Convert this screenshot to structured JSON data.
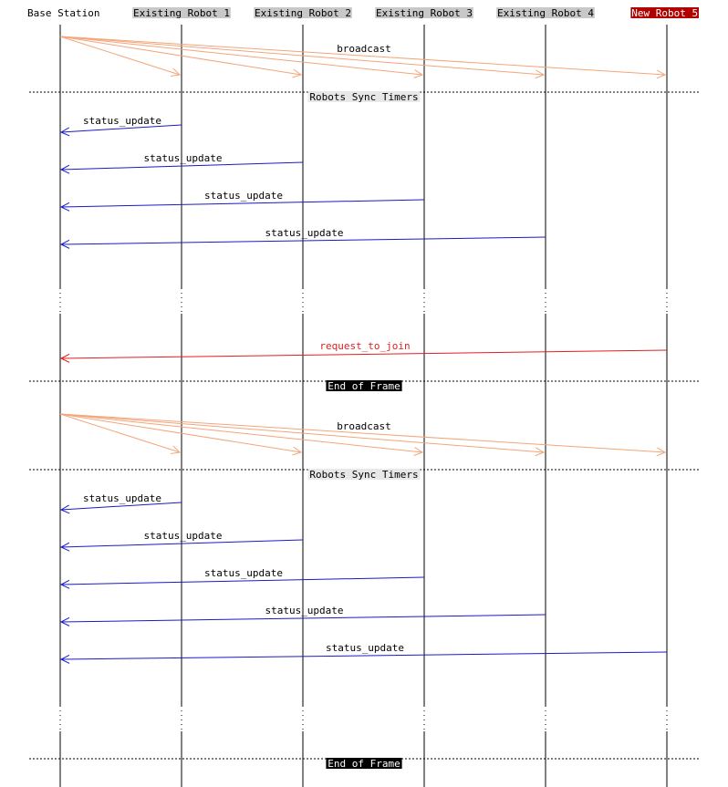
{
  "participants": [
    {
      "id": "base",
      "label": "Base Station",
      "style": "plain"
    },
    {
      "id": "r1",
      "label": "Existing Robot 1",
      "style": "gray"
    },
    {
      "id": "r2",
      "label": "Existing Robot 2",
      "style": "gray"
    },
    {
      "id": "r3",
      "label": "Existing Robot 3",
      "style": "gray"
    },
    {
      "id": "r4",
      "label": "Existing Robot 4",
      "style": "gray"
    },
    {
      "id": "r5",
      "label": "New Robot 5",
      "style": "red"
    }
  ],
  "colors": {
    "broadcast": "#f4a57a",
    "status_update": "#1a1acc",
    "request_to_join": "#e02020",
    "lifeline": "#000000",
    "gray_label_bg": "#c8c8c8",
    "red_label_bg": "#b00000",
    "divider_label_bg": "#e8e8e8",
    "frame_label_bg": "#000000"
  },
  "events": [
    {
      "kind": "broadcast",
      "label": "broadcast",
      "from": "base",
      "to": [
        "r1",
        "r2",
        "r3",
        "r4",
        "r5"
      ]
    },
    {
      "kind": "divider",
      "label": "Robots Sync Timers",
      "style": "light"
    },
    {
      "kind": "message",
      "label": "status_update",
      "from": "r1",
      "to": "base",
      "color": "status_update"
    },
    {
      "kind": "message",
      "label": "status_update",
      "from": "r2",
      "to": "base",
      "color": "status_update"
    },
    {
      "kind": "message",
      "label": "status_update",
      "from": "r3",
      "to": "base",
      "color": "status_update"
    },
    {
      "kind": "message",
      "label": "status_update",
      "from": "r4",
      "to": "base",
      "color": "status_update"
    },
    {
      "kind": "gap"
    },
    {
      "kind": "message",
      "label": "request_to_join",
      "from": "r5",
      "to": "base",
      "color": "request_to_join"
    },
    {
      "kind": "divider",
      "label": "End of Frame",
      "style": "dark"
    },
    {
      "kind": "broadcast",
      "label": "broadcast",
      "from": "base",
      "to": [
        "r1",
        "r2",
        "r3",
        "r4",
        "r5"
      ]
    },
    {
      "kind": "divider",
      "label": "Robots Sync Timers",
      "style": "light"
    },
    {
      "kind": "message",
      "label": "status_update",
      "from": "r1",
      "to": "base",
      "color": "status_update"
    },
    {
      "kind": "message",
      "label": "status_update",
      "from": "r2",
      "to": "base",
      "color": "status_update"
    },
    {
      "kind": "message",
      "label": "status_update",
      "from": "r3",
      "to": "base",
      "color": "status_update"
    },
    {
      "kind": "message",
      "label": "status_update",
      "from": "r4",
      "to": "base",
      "color": "status_update"
    },
    {
      "kind": "message",
      "label": "status_update",
      "from": "r5",
      "to": "base",
      "color": "status_update"
    },
    {
      "kind": "gap"
    },
    {
      "kind": "divider",
      "label": "End of Frame",
      "style": "dark"
    }
  ]
}
